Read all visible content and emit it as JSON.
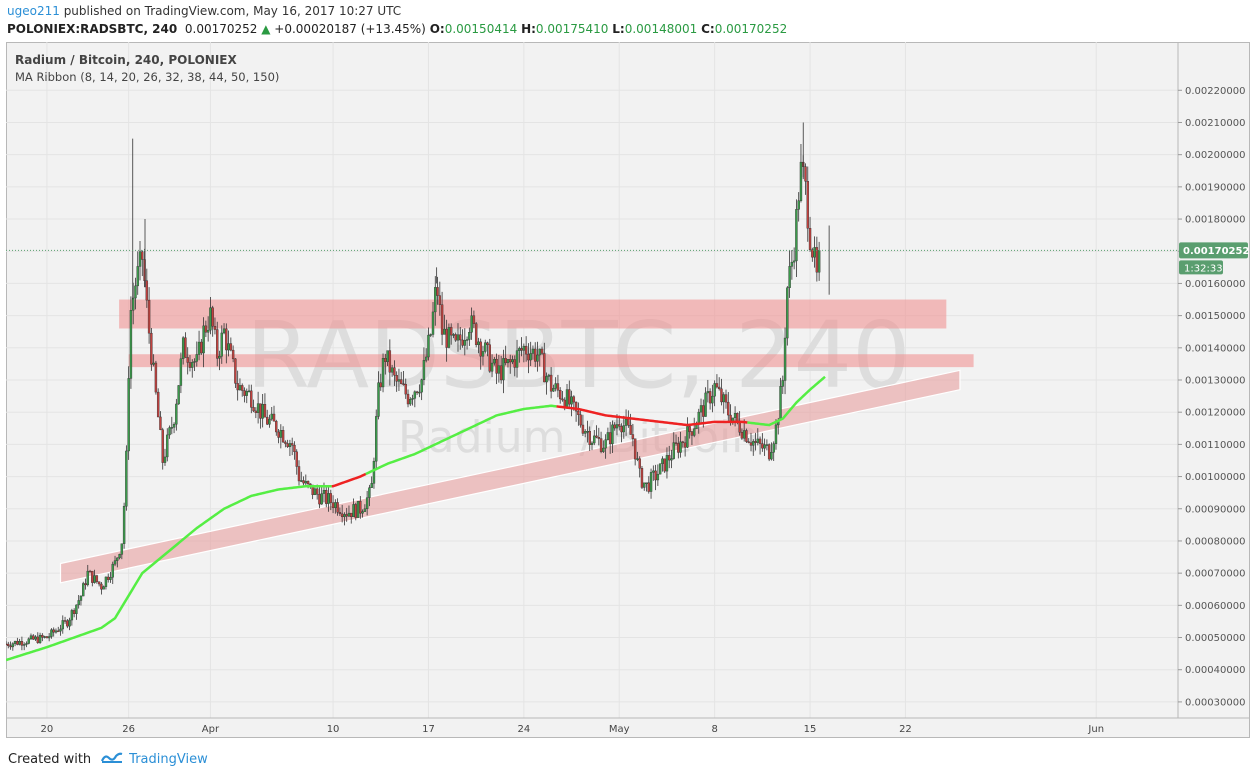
{
  "header": {
    "user": "ugeo211",
    "published_text": "published on TradingView.com, May 16, 2017 10:27 UTC",
    "symbol_line": "POLONIEX:RADSBTC, 240",
    "last": "0.00170252",
    "change": "+0.00020187 (+13.45%)",
    "o_label": "O:",
    "o_value": "0.00150414",
    "h_label": "H:",
    "h_value": "0.00175410",
    "l_label": "L:",
    "l_value": "0.00148001",
    "c_label": "C:",
    "c_value": "0.00170252"
  },
  "legend": {
    "title": "Radium / Bitcoin, 240, POLONIEX",
    "indicator": "MA Ribbon (8, 14, 20, 26, 32, 38, 44, 50, 150)"
  },
  "watermark": {
    "symbol": "RADSBTC, 240",
    "name": "Radium / Bitcoin"
  },
  "price_tag": {
    "value": "0.00170252",
    "countdown": "1:32:33",
    "color": "#5a9e6f"
  },
  "footer": {
    "created_with": "Created with",
    "brand": "TradingView"
  },
  "colors": {
    "up": "#3a9a4a",
    "down": "#c0413e",
    "wick": "#333333",
    "ma150_above": "#55ee44",
    "ma150_below": "#ee2222",
    "zone": "#f08a8a",
    "channel": "#e8a0a0",
    "grid": "#e4e4e4",
    "bg": "#f2f2f2"
  },
  "chart_data": {
    "type": "candlestick",
    "title": "Radium / Bitcoin, 240, POLONIEX",
    "ylim": [
      0.00025,
      0.00235
    ],
    "y_ticks": [
      "0.00030000",
      "0.00040000",
      "0.00050000",
      "0.00060000",
      "0.00070000",
      "0.00080000",
      "0.00090000",
      "0.00100000",
      "0.00110000",
      "0.00120000",
      "0.00130000",
      "0.00140000",
      "0.00150000",
      "0.00160000",
      "0.00170000",
      "0.00180000",
      "0.00190000",
      "0.00200000",
      "0.00210000",
      "0.00220000"
    ],
    "x_ticks": [
      "20",
      "26",
      "Apr",
      "10",
      "17",
      "24",
      "May",
      "8",
      "15",
      "22",
      "Jun"
    ],
    "x_tick_days": [
      0,
      6,
      12,
      21,
      28,
      35,
      42,
      49,
      56,
      63,
      77
    ],
    "x_range_days": [
      -3,
      83
    ],
    "last_day": 56.8,
    "zones": [
      {
        "type": "resistance",
        "y_low": 0.00146,
        "y_high": 0.00155,
        "day_start": 5.3,
        "day_end": 66.0
      },
      {
        "type": "resistance",
        "y_low": 0.00134,
        "y_high": 0.00138,
        "day_start": 6.0,
        "day_end": 68.0
      }
    ],
    "channel": {
      "day_start": 1.0,
      "day_end": 67.0,
      "lower_start": 0.00067,
      "lower_end": 0.00127,
      "upper_start": 0.00073,
      "upper_end": 0.00133
    },
    "ma150": [
      [
        -3,
        0.00043
      ],
      [
        0,
        0.00047
      ],
      [
        2,
        0.0005
      ],
      [
        4,
        0.00053
      ],
      [
        5,
        0.00056
      ],
      [
        6,
        0.00063
      ],
      [
        7,
        0.0007
      ],
      [
        9,
        0.00077
      ],
      [
        11,
        0.00084
      ],
      [
        13,
        0.0009
      ],
      [
        15,
        0.00094
      ],
      [
        17,
        0.00096
      ],
      [
        19,
        0.00097
      ],
      [
        21,
        0.00097
      ],
      [
        23,
        0.001
      ],
      [
        25,
        0.00104
      ],
      [
        27,
        0.00107
      ],
      [
        29,
        0.00111
      ],
      [
        31,
        0.00115
      ],
      [
        33,
        0.00119
      ],
      [
        35,
        0.00121
      ],
      [
        37,
        0.00122
      ],
      [
        39,
        0.00121
      ],
      [
        41,
        0.00119
      ],
      [
        43,
        0.00118
      ],
      [
        45,
        0.00117
      ],
      [
        47,
        0.00116
      ],
      [
        49,
        0.00117
      ],
      [
        51,
        0.00117
      ],
      [
        53,
        0.00116
      ],
      [
        54,
        0.00118
      ],
      [
        55,
        0.00123
      ],
      [
        56,
        0.00127
      ],
      [
        57.1,
        0.00131
      ]
    ],
    "ma150_red_segments": [
      [
        21,
        23.5
      ],
      [
        37.5,
        51.5
      ]
    ],
    "price_path": [
      [
        -3,
        0.00048
      ],
      [
        0,
        0.0005
      ],
      [
        1.5,
        0.00055
      ],
      [
        2.5,
        0.00063
      ],
      [
        3,
        0.0007
      ],
      [
        4,
        0.00066
      ],
      [
        5,
        0.00073
      ],
      [
        5.5,
        0.0008
      ],
      [
        5.8,
        0.001
      ],
      [
        6.1,
        0.0015
      ],
      [
        6.5,
        0.0016
      ],
      [
        7,
        0.00168
      ],
      [
        7.5,
        0.00145
      ],
      [
        8,
        0.00125
      ],
      [
        8.5,
        0.00105
      ],
      [
        9.3,
        0.00118
      ],
      [
        10,
        0.0014
      ],
      [
        11,
        0.00135
      ],
      [
        11.5,
        0.00145
      ],
      [
        12,
        0.0015
      ],
      [
        12.5,
        0.00138
      ],
      [
        13,
        0.00145
      ],
      [
        14,
        0.00128
      ],
      [
        15,
        0.00125
      ],
      [
        16,
        0.00118
      ],
      [
        17,
        0.00115
      ],
      [
        18,
        0.0011
      ],
      [
        18.5,
        0.001
      ],
      [
        19,
        0.00097
      ],
      [
        20,
        0.00094
      ],
      [
        21,
        0.00092
      ],
      [
        22,
        0.00089
      ],
      [
        23,
        0.0009
      ],
      [
        23.8,
        0.00095
      ],
      [
        24.3,
        0.00125
      ],
      [
        24.8,
        0.00138
      ],
      [
        25.5,
        0.0013
      ],
      [
        26.5,
        0.00125
      ],
      [
        27.5,
        0.0013
      ],
      [
        28.2,
        0.00145
      ],
      [
        28.6,
        0.0016
      ],
      [
        29,
        0.00145
      ],
      [
        30,
        0.0014
      ],
      [
        31,
        0.00148
      ],
      [
        32,
        0.0014
      ],
      [
        33,
        0.00132
      ],
      [
        34,
        0.00135
      ],
      [
        35,
        0.0014
      ],
      [
        36,
        0.00138
      ],
      [
        37,
        0.00128
      ],
      [
        38,
        0.00125
      ],
      [
        39,
        0.00118
      ],
      [
        40,
        0.00112
      ],
      [
        41,
        0.0011
      ],
      [
        42,
        0.00118
      ],
      [
        43,
        0.00112
      ],
      [
        43.5,
        0.001
      ],
      [
        44,
        0.00097
      ],
      [
        45,
        0.00102
      ],
      [
        46,
        0.00108
      ],
      [
        47,
        0.00113
      ],
      [
        48,
        0.0012
      ],
      [
        49,
        0.00128
      ],
      [
        50,
        0.0012
      ],
      [
        51,
        0.00115
      ],
      [
        52,
        0.0011
      ],
      [
        53,
        0.00108
      ],
      [
        53.5,
        0.00115
      ],
      [
        54,
        0.0013
      ],
      [
        54.3,
        0.00158
      ],
      [
        54.8,
        0.0017
      ],
      [
        55.3,
        0.00195
      ],
      [
        55.6,
        0.00192
      ],
      [
        56,
        0.00175
      ],
      [
        56.4,
        0.00165
      ],
      [
        56.8,
        0.0015
      ],
      [
        57.3,
        0.00158
      ],
      [
        57.7,
        0.00152
      ],
      [
        58,
        0.0017
      ]
    ],
    "spikes": [
      [
        6.3,
        0.00205
      ],
      [
        7.2,
        0.0018
      ],
      [
        28.6,
        0.00165
      ],
      [
        55.5,
        0.0021
      ],
      [
        57.4,
        0.00178
      ]
    ]
  }
}
